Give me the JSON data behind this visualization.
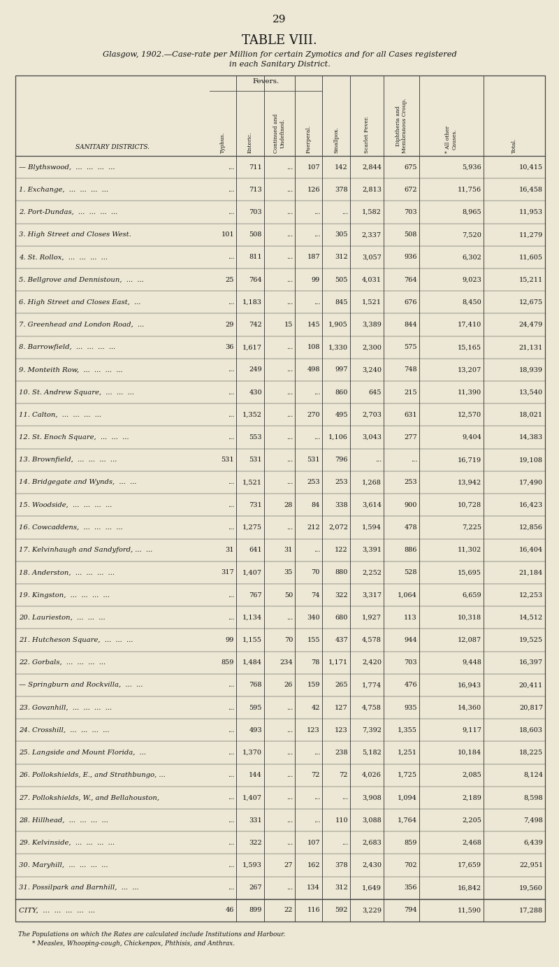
{
  "page_number": "29",
  "title": "TABLE VIII.",
  "subtitle_line1": "Glasgow, 1902.—Case-rate per Million for certain Zymotics and for all Cases registered",
  "subtitle_line2": "in each Sanitary District.",
  "col_header_district": "SANITARY DISTRICTS.",
  "col_header_fevers": "Fevers.",
  "col_headers": [
    "Typhus.",
    "Enteric.",
    "Continued and\nUndefined.",
    "Puerperal.",
    "Smallpox.",
    "Scarlet Fever.",
    "Diphtheria and\nMembranous Croup.",
    "* All other\nCauses.",
    "Total."
  ],
  "rows": [
    [
      "— Blythswood,  ...  ...  ...  ...",
      "...",
      "711",
      "...",
      "107",
      "142",
      "2,844",
      "675",
      "5,936",
      "10,415"
    ],
    [
      "1. Exchange,  ...  ...  ...  ...",
      "...",
      "713",
      "...",
      "126",
      "378",
      "2,813",
      "672",
      "11,756",
      "16,458"
    ],
    [
      "2. Port-Dundas,  ...  ...  ...  ...",
      "...",
      "703",
      "...",
      "...",
      "...",
      "1,582",
      "703",
      "8,965",
      "11,953"
    ],
    [
      "3. High Street and Closes West.",
      "101",
      "508",
      "...",
      "...",
      "305",
      "2,337",
      "508",
      "7,520",
      "11,279"
    ],
    [
      "4. St. Rollox,  ...  ...  ...  ...",
      "...",
      "811",
      "...",
      "187",
      "312",
      "3,057",
      "936",
      "6,302",
      "11,605"
    ],
    [
      "5. Bellgrove and Dennistoun,  ...  ...",
      "25",
      "764",
      "...",
      "99",
      "505",
      "4,031",
      "764",
      "9,023",
      "15,211"
    ],
    [
      "6. High Street and Closes East,  ...",
      "...",
      "1,183",
      "...",
      "...",
      "845",
      "1,521",
      "676",
      "8,450",
      "12,675"
    ],
    [
      "7. Greenhead and London Road,  ...",
      "29",
      "742",
      "15",
      "145",
      "1,905",
      "3,389",
      "844",
      "17,410",
      "24,479"
    ],
    [
      "8. Barrowfield,  ...  ...  ...  ...",
      "36",
      "1,617",
      "...",
      "108",
      "1,330",
      "2,300",
      "575",
      "15,165",
      "21,131"
    ],
    [
      "9. Monteith Row,  ...  ...  ...  ...",
      "...",
      "249",
      "...",
      "498",
      "997",
      "3,240",
      "748",
      "13,207",
      "18,939"
    ],
    [
      "10. St. Andrew Square,  ...  ...  ...",
      "...",
      "430",
      "...",
      "...",
      "860",
      "645",
      "215",
      "11,390",
      "13,540"
    ],
    [
      "11. Calton,  ...  ...  ...  ...",
      "...",
      "1,352",
      "...",
      "270",
      "495",
      "2,703",
      "631",
      "12,570",
      "18,021"
    ],
    [
      "12. St. Enoch Square,  ...  ...  ...",
      "...",
      "553",
      "...",
      "...",
      "1,106",
      "3,043",
      "277",
      "9,404",
      "14,383"
    ],
    [
      "13. Brownfield,  ...  ...  ...  ...",
      "531",
      "531",
      "...",
      "531",
      "796",
      "...",
      "...",
      "16,719",
      "19,108"
    ],
    [
      "14. Bridgegate and Wynds,  ...  ...",
      "...",
      "1,521",
      "...",
      "253",
      "253",
      "1,268",
      "253",
      "13,942",
      "17,490"
    ],
    [
      "15. Woodside,  ...  ...  ...  ...",
      "...",
      "731",
      "28",
      "84",
      "338",
      "3,614",
      "900",
      "10,728",
      "16,423"
    ],
    [
      "16. Cowcaddens,  ...  ...  ...  ...",
      "...",
      "1,275",
      "...",
      "212",
      "2,072",
      "1,594",
      "478",
      "7,225",
      "12,856"
    ],
    [
      "17. Kelvinhaugh and Sandyford, ...  ...",
      "31",
      "641",
      "31",
      "...",
      "122",
      "3,391",
      "886",
      "11,302",
      "16,404"
    ],
    [
      "18. Anderston,  ...  ...  ...  ...",
      "317",
      "1,407",
      "35",
      "70",
      "880",
      "2,252",
      "528",
      "15,695",
      "21,184"
    ],
    [
      "19. Kingston,  ...  ...  ...  ...",
      "...",
      "767",
      "50",
      "74",
      "322",
      "3,317",
      "1,064",
      "6,659",
      "12,253"
    ],
    [
      "20. Laurieston,  ...  ...  ...",
      "...",
      "1,134",
      "...",
      "340",
      "680",
      "1,927",
      "113",
      "10,318",
      "14,512"
    ],
    [
      "21. Hutcheson Square,  ...  ...  ...",
      "99",
      "1,155",
      "70",
      "155",
      "437",
      "4,578",
      "944",
      "12,087",
      "19,525"
    ],
    [
      "22. Gorbals,  ...  ...  ...  ...",
      "859",
      "1,484",
      "234",
      "78",
      "1,171",
      "2,420",
      "703",
      "9,448",
      "16,397"
    ],
    [
      "— Springburn and Rockvilla,  ...  ...",
      "...",
      "768",
      "26",
      "159",
      "265",
      "1,774",
      "476",
      "16,943",
      "20,411"
    ],
    [
      "23. Govanhill,  ...  ...  ...  ...",
      "...",
      "595",
      "...",
      "42",
      "127",
      "4,758",
      "935",
      "14,360",
      "20,817"
    ],
    [
      "24. Crosshill,  ...  ...  ...  ...",
      "...",
      "493",
      "...",
      "123",
      "123",
      "7,392",
      "1,355",
      "9,117",
      "18,603"
    ],
    [
      "25. Langside and Mount Florida,  ...",
      "...",
      "1,370",
      "...",
      "...",
      "238",
      "5,182",
      "1,251",
      "10,184",
      "18,225"
    ],
    [
      "26. Pollokshields, E., and Strathbungo, ...",
      "...",
      "144",
      "...",
      "72",
      "72",
      "4,026",
      "1,725",
      "2,085",
      "8,124"
    ],
    [
      "27. Pollokshields, W., and Bellahouston,",
      "...",
      "1,407",
      "...",
      "...",
      "...",
      "3,908",
      "1,094",
      "2,189",
      "8,598"
    ],
    [
      "28. Hillhead,  ...  ...  ...  ...",
      "...",
      "331",
      "...",
      "...",
      "110",
      "3,088",
      "1,764",
      "2,205",
      "7,498"
    ],
    [
      "29. Kelvinside,  ...  ...  ...  ...",
      "...",
      "322",
      "...",
      "107",
      "...",
      "2,683",
      "859",
      "2,468",
      "6,439"
    ],
    [
      "30. Maryhill,  ...  ...  ...  ...",
      "...",
      "1,593",
      "27",
      "162",
      "378",
      "2,430",
      "702",
      "17,659",
      "22,951"
    ],
    [
      "31. Possilpark and Barnhill,  ...  ...",
      "...",
      "267",
      "...",
      "134",
      "312",
      "1,649",
      "356",
      "16,842",
      "19,560"
    ],
    [
      "CITY,  ...  ...  ...  ...  ...",
      "46",
      "899",
      "22",
      "116",
      "592",
      "3,229",
      "794",
      "11,590",
      "17,288"
    ]
  ],
  "footer1": "The Populations on which the Rates are calculated include Institutions and Harbour.",
  "footer2": "* Measles, Whooping-cough, Chickenpox, Phthisis, and Anthrax.",
  "bg_color": "#ede8d5",
  "text_color": "#111111",
  "line_color": "#444444"
}
